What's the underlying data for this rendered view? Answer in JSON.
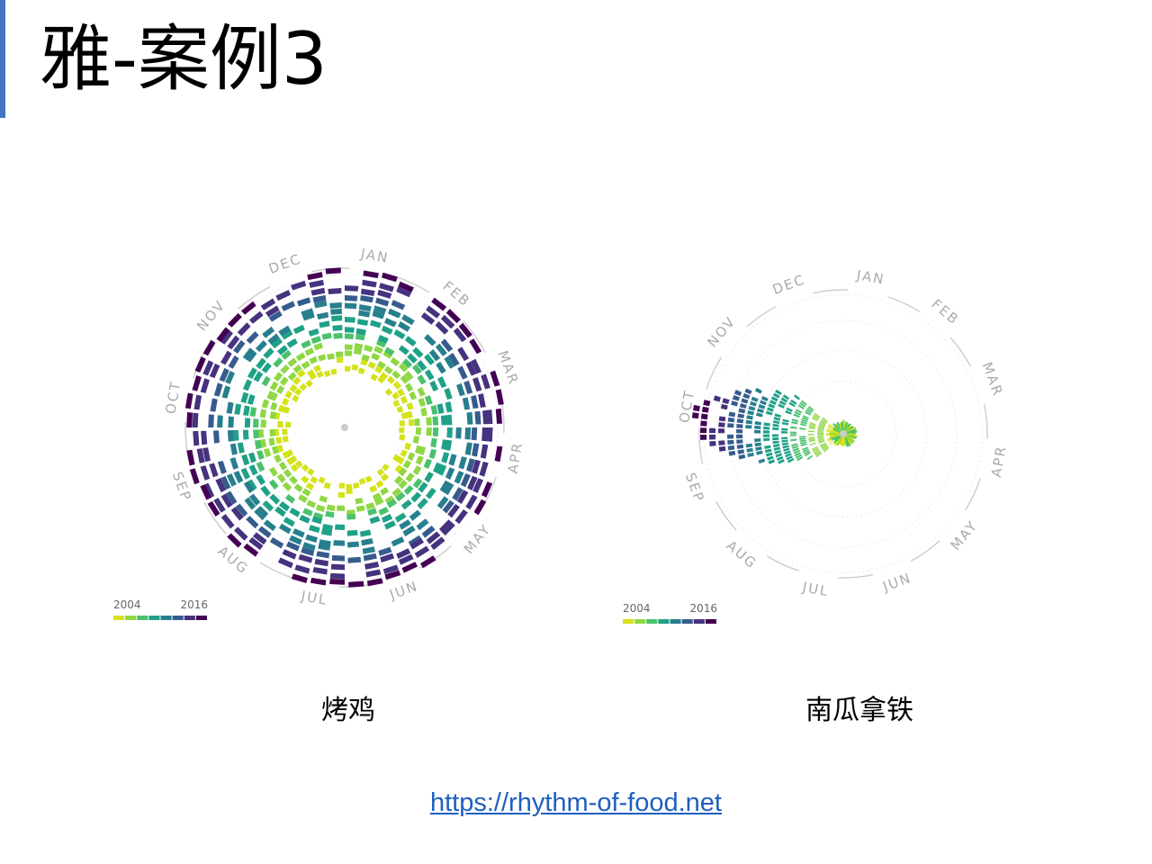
{
  "slide": {
    "title": "雅-案例3",
    "link_text": "https://rhythm-of-food.net",
    "accent_color": "#4472c4"
  },
  "chart_data": [
    {
      "type": "radial-heatmap",
      "caption": "烤鸡",
      "months": [
        "JAN",
        "FEB",
        "MAR",
        "APR",
        "MAY",
        "JUN",
        "JUL",
        "AUG",
        "SEP",
        "OCT",
        "NOV",
        "DEC"
      ],
      "legend": {
        "start": "2004",
        "end": "2016"
      },
      "pattern": "evenly distributed across all months",
      "colormap": [
        "#d4e21a",
        "#8fd744",
        "#4ac16d",
        "#1fa187",
        "#277f8e",
        "#365c8d",
        "#46327e",
        "#440154"
      ]
    },
    {
      "type": "radial-heatmap",
      "caption": "南瓜拿铁",
      "months": [
        "JAN",
        "FEB",
        "MAR",
        "APR",
        "MAY",
        "JUN",
        "JUL",
        "AUG",
        "SEP",
        "OCT",
        "NOV",
        "DEC"
      ],
      "legend": {
        "start": "2004",
        "end": "2016"
      },
      "pattern": "concentrated in SEP–NOV, peaking in OCT",
      "colormap": [
        "#d4e21a",
        "#8fd744",
        "#4ac16d",
        "#1fa187",
        "#277f8e",
        "#365c8d",
        "#46327e",
        "#440154"
      ]
    }
  ]
}
